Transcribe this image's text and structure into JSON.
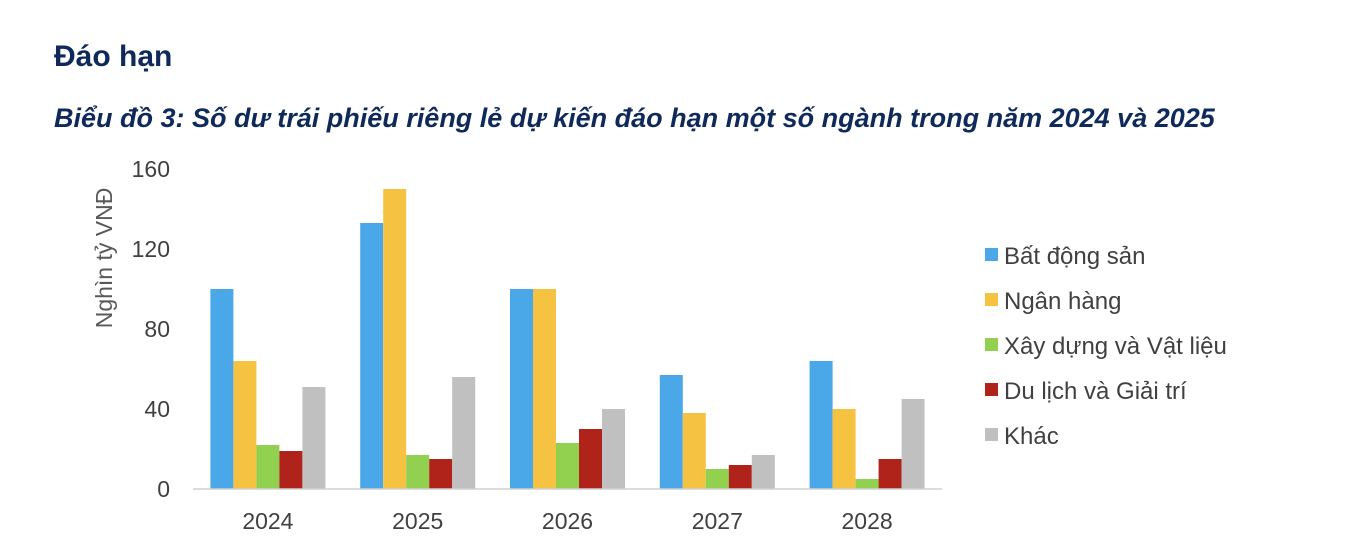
{
  "header": {
    "section_title": "Đáo hạn"
  },
  "chart_data": {
    "type": "bar",
    "title": "Biểu đồ 3: Số dư trái phiếu riêng lẻ dự kiến đáo hạn một số ngành trong năm 2024 và 2025",
    "xlabel": "",
    "ylabel": "Nghìn tỷ VNĐ",
    "ylim": [
      0,
      160
    ],
    "yticks": [
      0,
      40,
      80,
      120,
      160
    ],
    "grid": false,
    "legend_position": "right",
    "categories": [
      "2024",
      "2025",
      "2026",
      "2027",
      "2028"
    ],
    "series": [
      {
        "name": "Bất động sản",
        "color": "#4aa8e8",
        "values": [
          100,
          133,
          100,
          57,
          64
        ]
      },
      {
        "name": "Ngân hàng",
        "color": "#f5c242",
        "values": [
          64,
          150,
          100,
          38,
          40
        ]
      },
      {
        "name": "Xây dựng và Vật liệu",
        "color": "#92d050",
        "values": [
          22,
          17,
          23,
          10,
          5
        ]
      },
      {
        "name": "Du lịch và Giải trí",
        "color": "#b0231a",
        "values": [
          19,
          15,
          30,
          12,
          15
        ]
      },
      {
        "name": "Khác",
        "color": "#c0c0c0",
        "values": [
          51,
          56,
          40,
          17,
          45
        ]
      }
    ]
  }
}
